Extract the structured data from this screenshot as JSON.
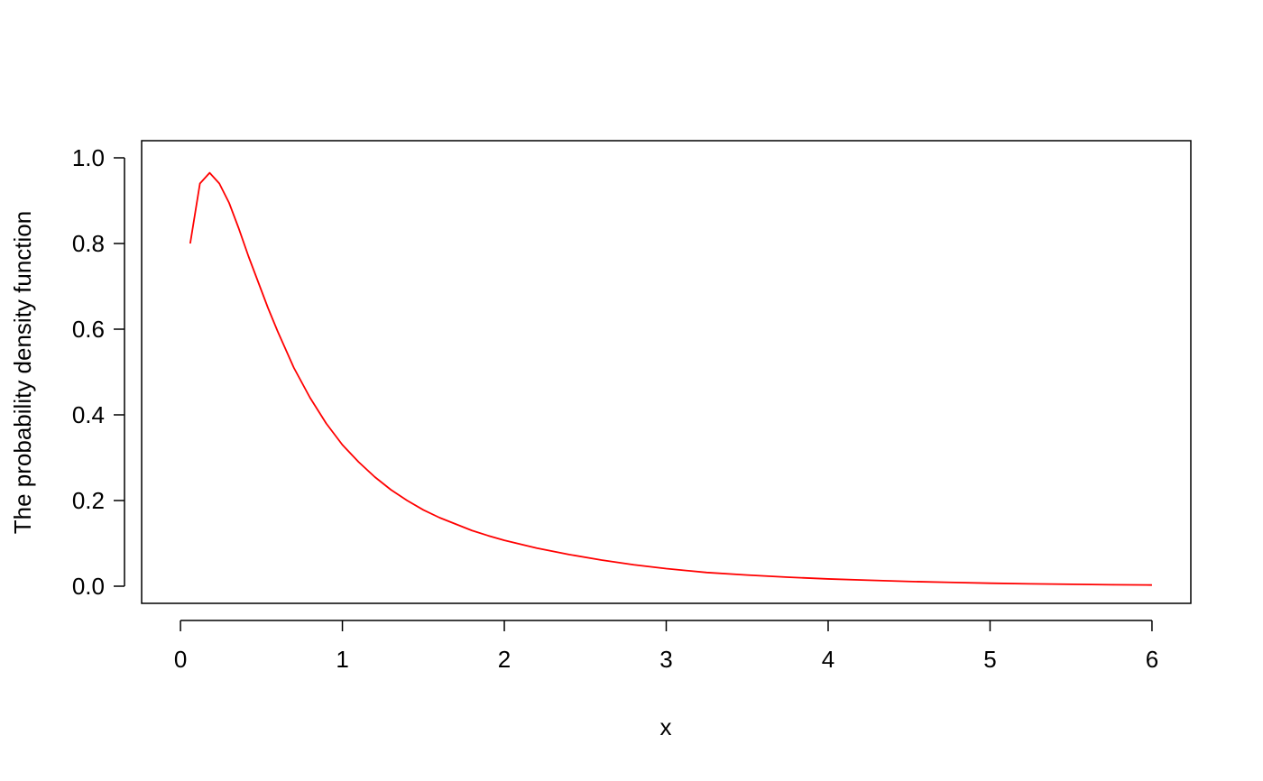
{
  "chart_data": {
    "type": "line",
    "title": "",
    "xlabel": "x",
    "ylabel": "The probability density function",
    "xlim": [
      -0.24,
      6.24
    ],
    "ylim": [
      -0.04,
      1.04
    ],
    "x_ticks": [
      0,
      1,
      2,
      3,
      4,
      5,
      6
    ],
    "x_tick_labels": [
      "0",
      "1",
      "2",
      "3",
      "4",
      "5",
      "6"
    ],
    "y_ticks": [
      0.0,
      0.2,
      0.4,
      0.6,
      0.8,
      1.0
    ],
    "y_tick_labels": [
      "0.0",
      "0.2",
      "0.4",
      "0.6",
      "0.8",
      "1.0"
    ],
    "grid": false,
    "legend": "none",
    "line_color": "#FF0000",
    "series": [
      {
        "x": [
          0.06,
          0.12,
          0.18,
          0.24,
          0.3,
          0.36,
          0.42,
          0.48,
          0.54,
          0.6,
          0.7,
          0.8,
          0.9,
          1.0,
          1.1,
          1.2,
          1.3,
          1.4,
          1.5,
          1.6,
          1.7,
          1.8,
          1.9,
          2.0,
          2.2,
          2.4,
          2.6,
          2.8,
          3.0,
          3.25,
          3.5,
          3.75,
          4.0,
          4.25,
          4.5,
          4.75,
          5.0,
          5.25,
          5.5,
          5.75,
          6.0
        ],
        "y": [
          0.8,
          0.94,
          0.965,
          0.94,
          0.895,
          0.835,
          0.77,
          0.71,
          0.65,
          0.595,
          0.51,
          0.44,
          0.38,
          0.33,
          0.29,
          0.255,
          0.225,
          0.2,
          0.178,
          0.16,
          0.145,
          0.13,
          0.118,
          0.107,
          0.089,
          0.074,
          0.061,
          0.05,
          0.041,
          0.032,
          0.026,
          0.021,
          0.017,
          0.014,
          0.011,
          0.009,
          0.007,
          0.0055,
          0.0045,
          0.0035,
          0.0028
        ]
      }
    ]
  }
}
